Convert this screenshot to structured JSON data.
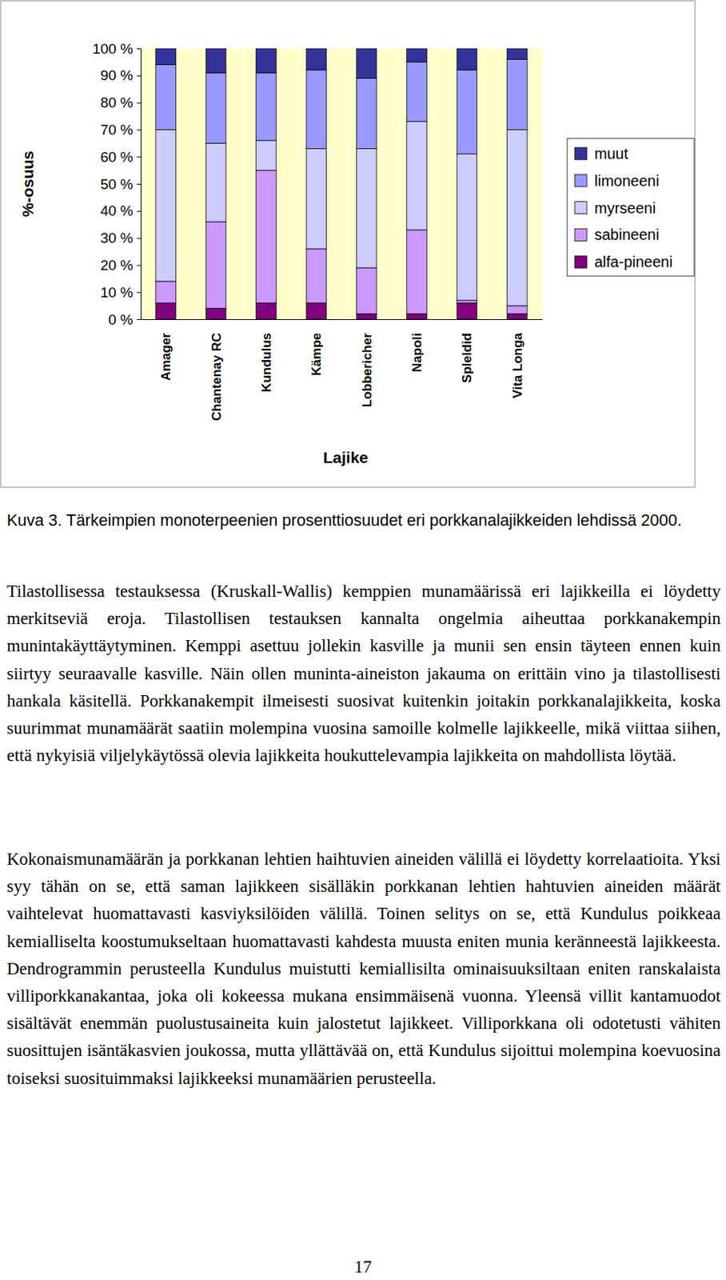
{
  "chart_data": {
    "type": "bar",
    "stacked": true,
    "xlabel": "Lajike",
    "ylabel": "%-osuus",
    "categories": [
      "Amager",
      "Chantenay RC",
      "Kundulus",
      "Kämpe",
      "Lobbericher",
      "Napoli",
      "Spleldid",
      "Vita Longa"
    ],
    "series": [
      {
        "name": "alfa-pineeni",
        "color": "#800080",
        "values": [
          6,
          4,
          6,
          6,
          2,
          2,
          6,
          2
        ]
      },
      {
        "name": "sabineeni",
        "color": "#cc99ff",
        "values": [
          8,
          32,
          49,
          20,
          17,
          31,
          1,
          3
        ]
      },
      {
        "name": "myrseeni",
        "color": "#ccccff",
        "values": [
          56,
          29,
          11,
          37,
          44,
          40,
          54,
          65
        ]
      },
      {
        "name": "limoneeni",
        "color": "#9999ff",
        "values": [
          24,
          26,
          25,
          29,
          26,
          22,
          31,
          26
        ]
      },
      {
        "name": "muut",
        "color": "#333399",
        "values": [
          6,
          9,
          9,
          8,
          11,
          5,
          8,
          4
        ]
      }
    ],
    "ylim": [
      0,
      100
    ],
    "yticks": [
      {
        "value": 0,
        "label": "0 %"
      },
      {
        "value": 10,
        "label": "10 %"
      },
      {
        "value": 20,
        "label": "20 %"
      },
      {
        "value": 30,
        "label": "30 %"
      },
      {
        "value": 40,
        "label": "40 %"
      },
      {
        "value": 50,
        "label": "50 %"
      },
      {
        "value": 60,
        "label": "60 %"
      },
      {
        "value": 70,
        "label": "70 %"
      },
      {
        "value": 80,
        "label": "80 %"
      },
      {
        "value": 90,
        "label": "90 %"
      },
      {
        "value": 100,
        "label": "100 %"
      }
    ],
    "grid": false,
    "legend": "right"
  },
  "document": {
    "caption": "Kuva 3. Tärkeimpien monoterpeenien prosenttiosuudet eri porkkanalajikkeiden lehdissä 2000.",
    "paragraphs": [
      "Tilastollisessa testauksessa (Kruskall-Wallis) kemppien munamäärissä eri lajikkeilla ei löydetty merkitseviä eroja. Tilastollisen testauksen kannalta ongelmia aiheuttaa porkkanakempin munintakäyttäytyminen. Kemppi asettuu jollekin kasville ja munii sen ensin täyteen ennen kuin siirtyy seuraavalle kasville. Näin ollen muninta-aineiston jakauma on erittäin vino ja tilastollisesti hankala käsitellä. Porkkanakempit ilmeisesti suosivat kuitenkin joitakin porkkanalajikkeita, koska suurimmat munamäärät saatiin molempina vuosina samoille kolmelle lajikkeelle, mikä viittaa siihen, että nykyisiä viljelykäytössä olevia lajikkeita houkuttelevampia lajikkeita on mahdollista löytää.",
      "Kokonaismunamäärän ja porkkanan lehtien haihtuvien aineiden välillä ei löydetty korrelaatioita. Yksi syy tähän on se, että saman lajikkeen sisälläkin porkkanan lehtien hahtuvien aineiden määrät vaihtelevat huomattavasti kasviyksilöiden välillä. Toinen selitys on se, että Kundulus poikkeaa kemialliselta koostumukseltaan huomattavasti kahdesta muusta eniten munia keränneestä lajikkeesta. Dendrogrammin perusteella Kundulus muistutti kemiallisilta ominaisuuksiltaan eniten ranskalaista villiporkkanakantaa, joka oli kokeessa mukana ensimmäisenä vuonna. Yleensä villit kantamuodot sisältävät enemmän puolustusaineita kuin jalostetut lajikkeet. Villiporkkana oli odotetusti vähiten suosittujen isäntäkasvien joukossa, mutta yllättävää on, että Kundulus sijoittui molempina koevuosina toiseksi suosituimmaksi lajikkeeksi munamäärien perusteella."
    ],
    "page_number": 17
  }
}
